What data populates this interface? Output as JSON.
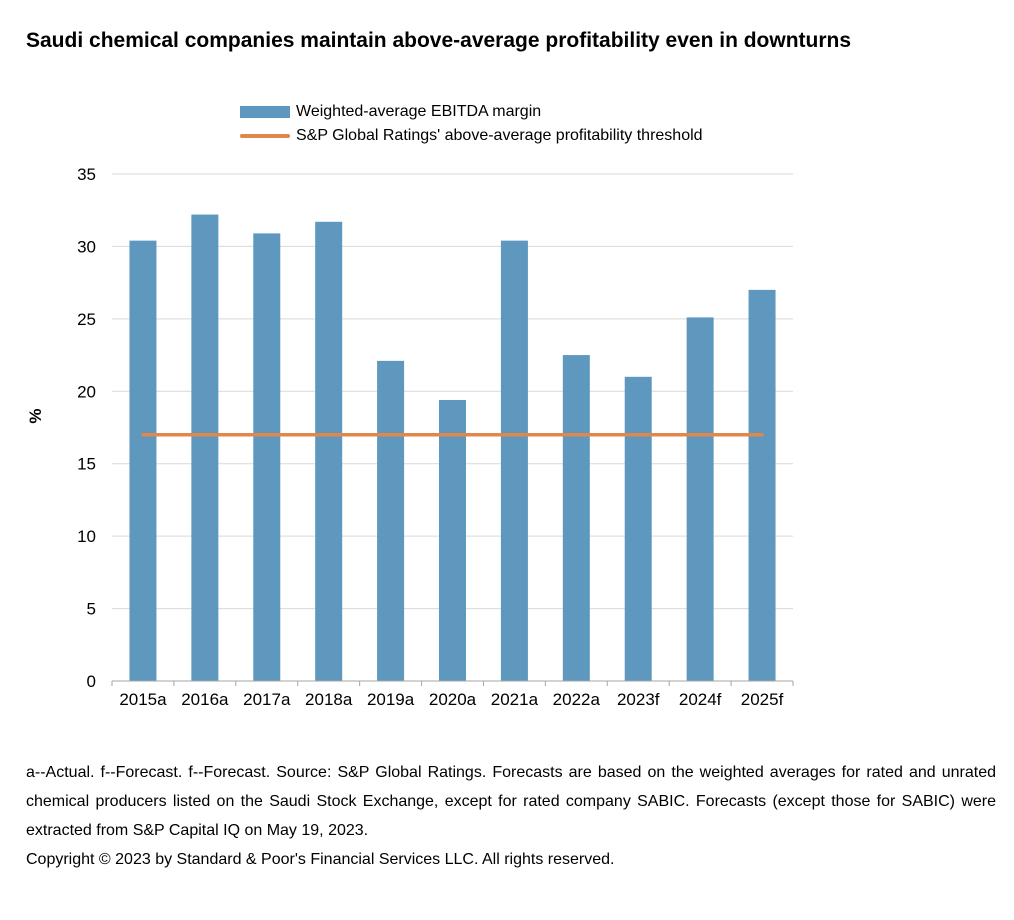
{
  "chart_data": {
    "type": "bar",
    "title": "Saudi chemical companies maintain above-average profitability even in downturns",
    "xlabel": "",
    "ylabel": "%",
    "ylim": [
      0,
      35
    ],
    "yticks": [
      0,
      5,
      10,
      15,
      20,
      25,
      30,
      35
    ],
    "grid": true,
    "legend_position": "top",
    "categories": [
      "2015a",
      "2016a",
      "2017a",
      "2018a",
      "2019a",
      "2020a",
      "2021a",
      "2022a",
      "2023f",
      "2024f",
      "2025f"
    ],
    "series": [
      {
        "name": "Weighted-average EBITDA margin",
        "type": "bar",
        "color": "#5f98bf",
        "values": [
          30.4,
          32.2,
          30.9,
          31.7,
          22.1,
          19.4,
          30.4,
          22.5,
          21.0,
          25.1,
          27.0
        ]
      },
      {
        "name": "S&P Global Ratings' above-average profitability threshold",
        "type": "line",
        "color": "#e0874b",
        "values": [
          17,
          17,
          17,
          17,
          17,
          17,
          17,
          17,
          17,
          17,
          17
        ]
      }
    ]
  },
  "footnote": {
    "text": "a--Actual. f--Forecast. f--Forecast. Source: S&P Global Ratings. Forecasts are based on the weighted averages for rated and unrated chemical producers listed on the Saudi Stock Exchange, except for rated company SABIC. Forecasts (except those for SABIC) were extracted from S&P Capital IQ on May 19, 2023.",
    "copyright": "Copyright © 2023 by Standard & Poor's Financial Services LLC. All rights reserved."
  }
}
